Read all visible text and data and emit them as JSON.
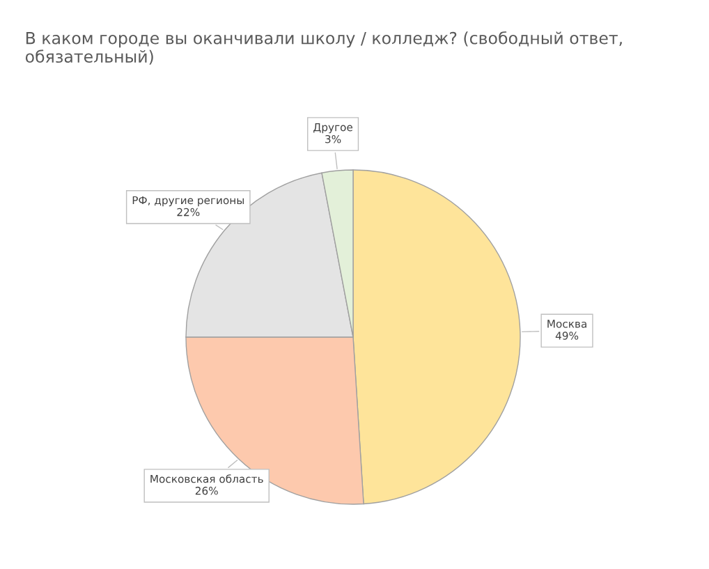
{
  "chart_data": {
    "type": "pie",
    "title": "В каком городе вы оканчивали школу / колледж? (свободный ответ, обязательный)",
    "categories": [
      "Москва",
      "Московская область",
      "РФ, другие регионы",
      "Другое"
    ],
    "values": [
      49,
      26,
      22,
      3
    ],
    "value_labels": [
      "49%",
      "26%",
      "22%",
      "3%"
    ],
    "colors": [
      "#fee49a",
      "#fdc9ad",
      "#e4e4e4",
      "#e3f0d9"
    ],
    "legend": false
  }
}
